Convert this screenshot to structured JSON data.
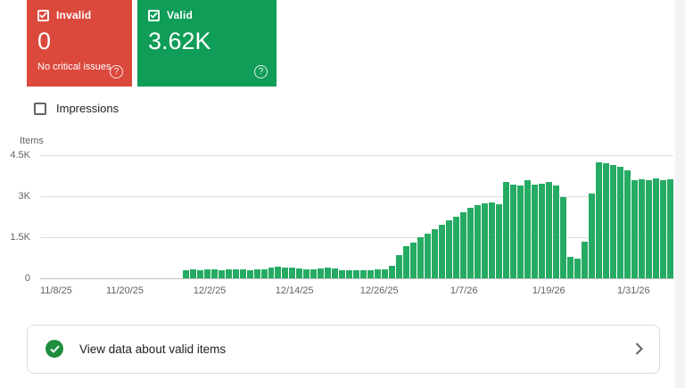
{
  "cards": {
    "invalid": {
      "label": "Invalid",
      "value": "0",
      "subtext": "No critical issues",
      "color": "#db483c",
      "help_icon": "?",
      "checked": true
    },
    "valid": {
      "label": "Valid",
      "value": "3.62K",
      "color": "#0f9d58",
      "help_icon": "?",
      "checked": true
    }
  },
  "filters": {
    "impressions_label": "Impressions",
    "impressions_checked": false
  },
  "chart_data": {
    "type": "bar",
    "title": "",
    "ylabel": "Items",
    "xlabel": "",
    "ylim": [
      0,
      4500
    ],
    "ytick_labels": [
      "4.5K",
      "3K",
      "1.5K",
      "0"
    ],
    "x_tick_labels": [
      "11/8/25",
      "11/20/25",
      "12/2/25",
      "12/14/25",
      "12/26/25",
      "1/7/26",
      "1/19/26",
      "1/31/26"
    ],
    "x_tick_positions": [
      0,
      12,
      24,
      36,
      48,
      60,
      72,
      84
    ],
    "total_days": 89,
    "bar_color": "#25ab63",
    "grid": true,
    "legend_position": "none",
    "values": [
      0,
      0,
      0,
      0,
      0,
      0,
      0,
      0,
      0,
      0,
      0,
      0,
      0,
      0,
      0,
      0,
      0,
      0,
      0,
      0,
      280,
      300,
      290,
      300,
      310,
      290,
      300,
      295,
      305,
      290,
      300,
      310,
      360,
      400,
      390,
      370,
      340,
      310,
      300,
      330,
      390,
      330,
      280,
      270,
      280,
      285,
      280,
      300,
      320,
      430,
      820,
      1150,
      1300,
      1480,
      1620,
      1780,
      1950,
      2100,
      2250,
      2400,
      2550,
      2650,
      2720,
      2760,
      2700,
      3500,
      3420,
      3380,
      3560,
      3400,
      3450,
      3520,
      3380,
      2950,
      760,
      700,
      1320,
      3080,
      4220,
      4180,
      4120,
      4050,
      3920,
      3560,
      3620,
      3560,
      3630,
      3580,
      3610
    ]
  },
  "footer": {
    "label": "View data about valid items"
  }
}
